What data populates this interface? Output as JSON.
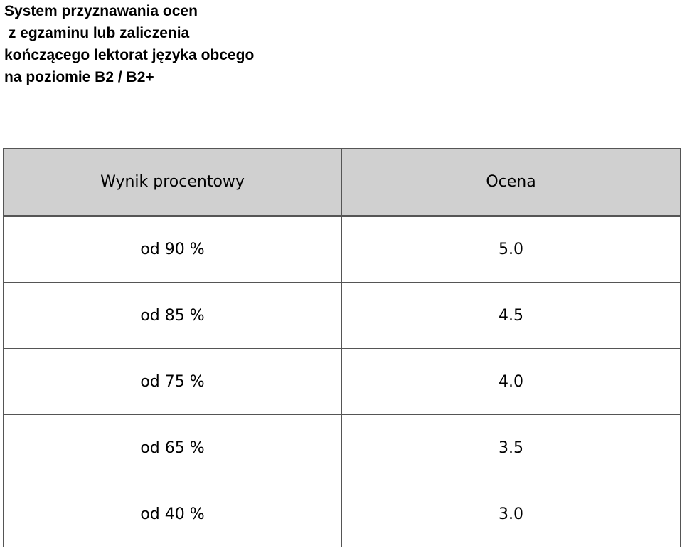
{
  "title": {
    "lines": [
      "System przyznawania ocen",
      " z egzaminu lub zaliczenia",
      "kończącego lektorat języka obcego",
      "na poziomie B2 / B2+"
    ]
  },
  "table": {
    "headers": [
      "Wynik procentowy",
      "Ocena"
    ],
    "header_background": "#d0d0d0",
    "rows": [
      {
        "score": "od 90 %",
        "grade": "5.0"
      },
      {
        "score": "od 85 %",
        "grade": "4.5"
      },
      {
        "score": "od 75 %",
        "grade": "4.0"
      },
      {
        "score": "od 65 %",
        "grade": "3.5"
      },
      {
        "score": "od 40 %",
        "grade": "3.0"
      }
    ]
  }
}
